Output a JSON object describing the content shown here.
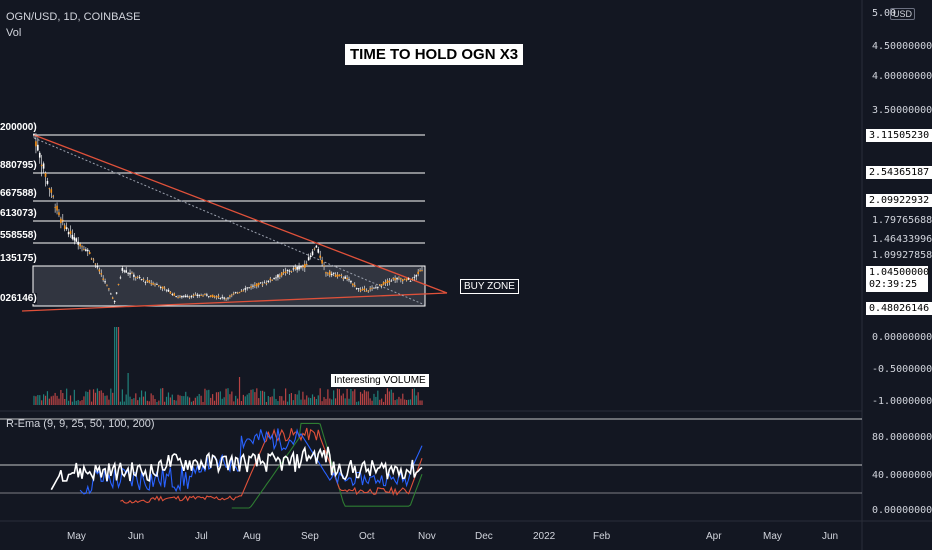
{
  "header": {
    "symbol_line": "OGN/USD, 1D, COINBASE",
    "volume_label": "Vol",
    "currency_badge": "USD"
  },
  "annotations": {
    "title": "TIME TO HOLD OGN X3",
    "buy_zone": "BUY ZONE",
    "volume_note": "Interesting VOLUME"
  },
  "indicator": {
    "label": "R-Ema (9, 9, 25, 50, 100, 200)"
  },
  "price_axis": {
    "ticks": [
      "5.00",
      "4.50000000",
      "4.00000000",
      "3.50000000",
      "0.00000000",
      "-0.50000000",
      "-1.00000000"
    ],
    "level_tags": [
      "3.11505230",
      "2.54365187",
      "2.09922932",
      "0.48026146"
    ],
    "level_plain": [
      "1.79765688",
      "1.46433996",
      "1.09927858"
    ],
    "current_price": "1.04500000",
    "countdown": "02:39:25"
  },
  "indicator_axis": {
    "ticks": [
      "80.00000000",
      "40.00000000",
      "0.00000000"
    ]
  },
  "left_labels": [
    "200000)",
    "880795)",
    "667588)",
    "613073)",
    "558558)",
    "135175)",
    "026146)"
  ],
  "time_axis": {
    "months": [
      "May",
      "Jun",
      "Jul",
      "Aug",
      "Sep",
      "Oct",
      "Nov",
      "Dec",
      "2022",
      "Feb",
      "Apr",
      "May",
      "Jun"
    ]
  },
  "colors": {
    "background": "#131722",
    "candle_body": "#f7931a",
    "trendline": "#e0513a",
    "ema_white": "#ffffff",
    "ema_blue": "#2962ff",
    "ema_red": "#e0513a",
    "ema_green": "#2e7d32",
    "volume_up": "#26a69a",
    "volume_down": "#ef5350"
  },
  "chart_data": {
    "type": "candlestick",
    "title": "TIME TO HOLD OGN X3",
    "symbol": "OGN/USD",
    "interval": "1D",
    "exchange": "COINBASE",
    "price_levels": [
      3.1150523,
      2.54365187,
      2.09922932,
      1.79765688,
      1.46433996,
      1.09927858,
      0.48026146
    ],
    "current_price": 1.045,
    "ylim": [
      -1.0,
      5.0
    ],
    "buy_zone": [
      0.48026146,
      1.09927858
    ],
    "close_path": [
      {
        "x": "2021-04-11",
        "y": 3.12
      },
      {
        "x": "2021-04-18",
        "y": 2.4
      },
      {
        "x": "2021-04-25",
        "y": 1.8
      },
      {
        "x": "2021-05-01",
        "y": 1.55
      },
      {
        "x": "2021-05-10",
        "y": 1.3
      },
      {
        "x": "2021-05-18",
        "y": 0.85
      },
      {
        "x": "2021-05-23",
        "y": 0.55
      },
      {
        "x": "2021-05-27",
        "y": 1.05
      },
      {
        "x": "2021-06-05",
        "y": 0.9
      },
      {
        "x": "2021-06-15",
        "y": 0.8
      },
      {
        "x": "2021-06-25",
        "y": 0.62
      },
      {
        "x": "2021-07-10",
        "y": 0.65
      },
      {
        "x": "2021-07-20",
        "y": 0.6
      },
      {
        "x": "2021-07-30",
        "y": 0.75
      },
      {
        "x": "2021-08-10",
        "y": 0.85
      },
      {
        "x": "2021-08-20",
        "y": 1.0
      },
      {
        "x": "2021-08-30",
        "y": 1.1
      },
      {
        "x": "2021-09-05",
        "y": 1.4
      },
      {
        "x": "2021-09-10",
        "y": 1.0
      },
      {
        "x": "2021-09-20",
        "y": 0.92
      },
      {
        "x": "2021-09-28",
        "y": 0.72
      },
      {
        "x": "2021-10-05",
        "y": 0.75
      },
      {
        "x": "2021-10-15",
        "y": 0.9
      },
      {
        "x": "2021-10-25",
        "y": 0.88
      },
      {
        "x": "2021-10-30",
        "y": 1.05
      }
    ]
  }
}
